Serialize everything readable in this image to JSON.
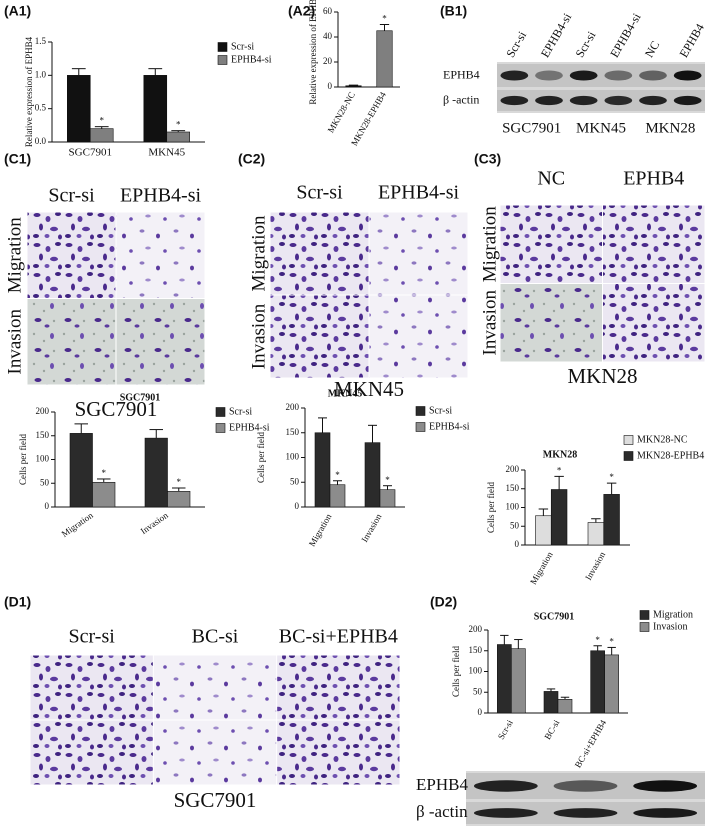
{
  "panels": {
    "a1": "(A1)",
    "a2": "(A2)",
    "b1": "(B1)",
    "c1": "(C1)",
    "c2": "(C2)",
    "c3": "(C3)",
    "d1": "(D1)",
    "d2": "(D2)"
  },
  "blot_b1": {
    "lanes": [
      "Scr-si",
      "EPHB4-si",
      "Scr-si",
      "EPHB4-si",
      "NC",
      "EPHB4"
    ],
    "rows": [
      "EPHB4",
      "β -actin"
    ],
    "cell_lines": [
      "SGC7901",
      "MKN45",
      "MKN28"
    ]
  },
  "images": {
    "c1": {
      "columns": [
        "Scr-si",
        "EPHB4-si"
      ],
      "rows": [
        "Migration",
        "Invasion"
      ],
      "caption": "SGC7901"
    },
    "c2": {
      "columns": [
        "Scr-si",
        "EPHB4-si"
      ],
      "rows": [
        "Migration",
        "Invasion"
      ],
      "caption": "MKN45"
    },
    "c3": {
      "columns": [
        "NC",
        "EPHB4"
      ],
      "rows": [
        "Migration",
        "Invasion"
      ],
      "caption": "MKN28"
    },
    "d1": {
      "columns": [
        "Scr-si",
        "BC-si",
        "BC-si+EPHB4"
      ],
      "caption": "SGC7901"
    }
  },
  "blot_d2": {
    "rows": [
      "EPHB4",
      "β -actin"
    ]
  },
  "chart_data": [
    {
      "type": "bar",
      "ylabel": "Relative expression of EPHB4",
      "categories": [
        "SGC7901",
        "MKN45"
      ],
      "series": [
        {
          "name": "Scr-si",
          "color": "#111111",
          "values": [
            1.0,
            1.0
          ],
          "errors": [
            0.1,
            0.1
          ],
          "significance": [
            null,
            null
          ]
        },
        {
          "name": "EPHB4-si",
          "color": "#7f7f7f",
          "values": [
            0.2,
            0.15
          ],
          "errors": [
            0.03,
            0.02
          ],
          "significance": [
            "*",
            "*"
          ]
        }
      ],
      "ylim": [
        0,
        1.5
      ],
      "yticks": [
        {
          "value": 0,
          "label": "0.0"
        },
        {
          "value": 0.5,
          "label": "0.5"
        },
        {
          "value": 1,
          "label": "1.0"
        },
        {
          "value": 1.5,
          "label": "1.5"
        }
      ],
      "legend": "right"
    },
    {
      "type": "bar",
      "ylabel": "Relative expression of EPHB4",
      "categories": [
        "MKN28-NC",
        "MKN28-EPHB4"
      ],
      "values": [
        1,
        45
      ],
      "errors": [
        0.5,
        5
      ],
      "colors": [
        "#111111",
        "#7f7f7f"
      ],
      "significance": [
        null,
        "*"
      ],
      "ylim": [
        0,
        60
      ],
      "yticks": [
        0,
        20,
        40,
        60
      ]
    },
    {
      "type": "bar",
      "title": "SGC7901",
      "ylabel": "Cells per field",
      "categories": [
        "Migration",
        "Invasion"
      ],
      "series": [
        {
          "name": "Scr-si",
          "color": "#2b2b2b",
          "values": [
            155,
            145
          ],
          "errors": [
            20,
            18
          ],
          "significance": [
            null,
            null
          ]
        },
        {
          "name": "EPHB4-si",
          "color": "#8c8c8c",
          "values": [
            52,
            33
          ],
          "errors": [
            7,
            7
          ],
          "significance": [
            "*",
            "*"
          ]
        }
      ],
      "ylim": [
        0,
        200
      ],
      "yticks": [
        0,
        50,
        100,
        150,
        200
      ],
      "legend": "right"
    },
    {
      "type": "bar",
      "title": "MKN45",
      "ylabel": "Cells per field",
      "categories": [
        "Migration",
        "Invasion"
      ],
      "series": [
        {
          "name": "Scr-si",
          "color": "#2b2b2b",
          "values": [
            150,
            130
          ],
          "errors": [
            30,
            35
          ],
          "significance": [
            null,
            null
          ]
        },
        {
          "name": "EPHB4-si",
          "color": "#8c8c8c",
          "values": [
            45,
            35
          ],
          "errors": [
            8,
            8
          ],
          "significance": [
            "*",
            "*"
          ]
        }
      ],
      "ylim": [
        0,
        200
      ],
      "yticks": [
        0,
        50,
        100,
        150,
        200
      ],
      "legend": "right"
    },
    {
      "type": "bar",
      "title": "MKN28",
      "ylabel": "Cells per field",
      "categories": [
        "Migration",
        "Invasion"
      ],
      "series": [
        {
          "name": "MKN28-NC",
          "color": "#dddddd",
          "values": [
            78,
            60
          ],
          "errors": [
            18,
            10
          ],
          "significance": [
            null,
            null
          ]
        },
        {
          "name": "MKN28-EPHB4",
          "color": "#2b2b2b",
          "values": [
            148,
            135
          ],
          "errors": [
            35,
            30
          ],
          "significance": [
            "*",
            "*"
          ]
        }
      ],
      "ylim": [
        0,
        200
      ],
      "yticks": [
        0,
        50,
        100,
        150,
        200
      ],
      "legend": "upper right"
    },
    {
      "type": "bar",
      "title": "SGC7901",
      "ylabel": "Cells per field",
      "categories": [
        "Scr-si",
        "BC-si",
        "BC-si+EPHB4"
      ],
      "series": [
        {
          "name": "Migration",
          "color": "#2b2b2b",
          "values": [
            165,
            52,
            150
          ],
          "errors": [
            22,
            6,
            12
          ],
          "significance": [
            null,
            null,
            "*"
          ]
        },
        {
          "name": "Invasion",
          "color": "#8c8c8c",
          "values": [
            155,
            33,
            140
          ],
          "errors": [
            22,
            5,
            18
          ],
          "significance": [
            null,
            null,
            "*"
          ]
        }
      ],
      "ylim": [
        0,
        200
      ],
      "yticks": [
        0,
        50,
        100,
        150,
        200
      ],
      "legend": "upper right"
    }
  ]
}
